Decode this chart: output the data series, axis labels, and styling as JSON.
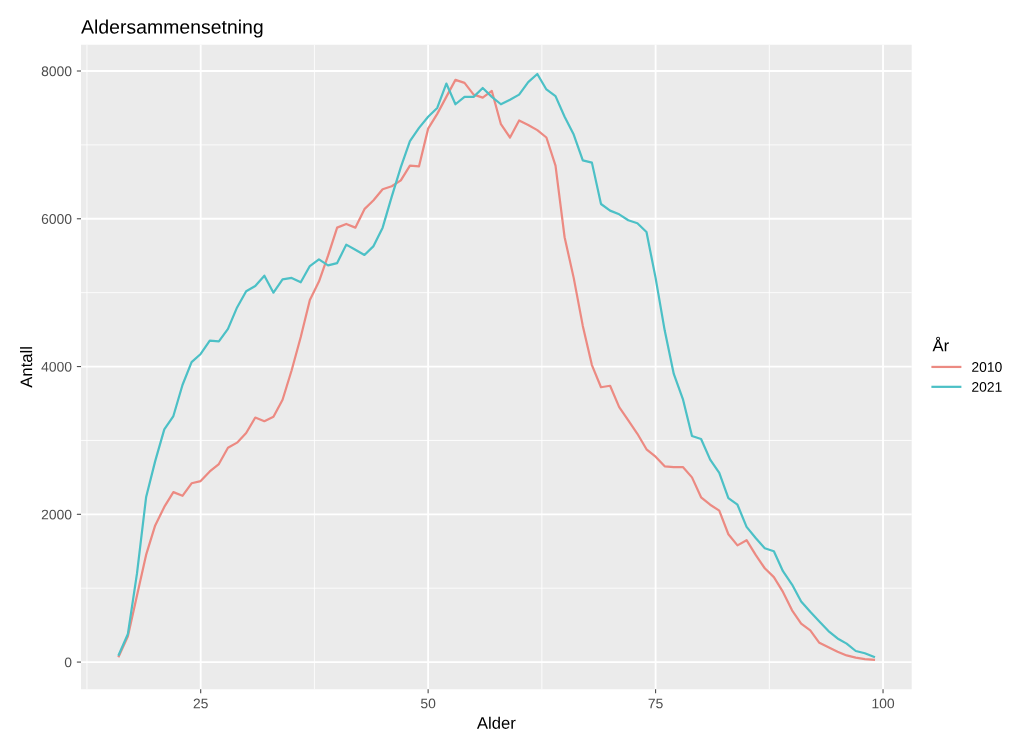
{
  "chart_data": {
    "type": "line",
    "title": "Aldersammensetning",
    "xlabel": "Alder",
    "ylabel": "Antall",
    "legend_title": "År",
    "x": [
      16,
      17,
      18,
      19,
      20,
      21,
      22,
      23,
      24,
      25,
      26,
      27,
      28,
      29,
      30,
      31,
      32,
      33,
      34,
      35,
      36,
      37,
      38,
      39,
      40,
      41,
      42,
      43,
      44,
      45,
      46,
      47,
      48,
      49,
      50,
      51,
      52,
      53,
      54,
      55,
      56,
      57,
      58,
      59,
      60,
      61,
      62,
      63,
      64,
      65,
      66,
      67,
      68,
      69,
      70,
      71,
      72,
      73,
      74,
      75,
      76,
      77,
      78,
      79,
      80,
      81,
      82,
      83,
      84,
      85,
      86,
      87,
      88,
      89,
      90,
      91,
      92,
      93,
      94,
      95,
      96,
      97,
      98,
      99
    ],
    "series": [
      {
        "name": "2010",
        "color": "#ec8a82",
        "values": [
          80,
          350,
          900,
          1450,
          1850,
          2100,
          2300,
          2250,
          2420,
          2450,
          2580,
          2680,
          2900,
          2970,
          3100,
          3310,
          3260,
          3320,
          3550,
          3950,
          4400,
          4900,
          5150,
          5500,
          5880,
          5930,
          5880,
          6130,
          6250,
          6400,
          6440,
          6520,
          6720,
          6710,
          7220,
          7420,
          7650,
          7880,
          7840,
          7680,
          7640,
          7730,
          7280,
          7100,
          7330,
          7270,
          7200,
          7100,
          6720,
          5750,
          5200,
          4550,
          4020,
          3720,
          3740,
          3450,
          3270,
          3090,
          2880,
          2780,
          2650,
          2640,
          2640,
          2500,
          2230,
          2130,
          2050,
          1730,
          1580,
          1650,
          1450,
          1270,
          1150,
          950,
          700,
          520,
          430,
          260,
          200,
          140,
          90,
          60,
          40,
          30
        ]
      },
      {
        "name": "2021",
        "color": "#4cc0c6",
        "values": [
          100,
          380,
          1200,
          2230,
          2720,
          3150,
          3330,
          3750,
          4060,
          4170,
          4350,
          4340,
          4510,
          4800,
          5020,
          5090,
          5230,
          5000,
          5180,
          5200,
          5140,
          5360,
          5450,
          5370,
          5400,
          5650,
          5580,
          5510,
          5630,
          5880,
          6300,
          6700,
          7050,
          7230,
          7380,
          7500,
          7830,
          7550,
          7650,
          7650,
          7770,
          7650,
          7550,
          7610,
          7680,
          7850,
          7960,
          7750,
          7660,
          7380,
          7140,
          6790,
          6760,
          6200,
          6110,
          6060,
          5980,
          5940,
          5820,
          5200,
          4490,
          3900,
          3560,
          3060,
          3020,
          2740,
          2560,
          2220,
          2130,
          1830,
          1680,
          1540,
          1500,
          1230,
          1050,
          820,
          680,
          550,
          420,
          320,
          250,
          150,
          120,
          70
        ]
      }
    ],
    "xlim": [
      11.85,
      103.15
    ],
    "ylim": [
      -366,
      8356
    ],
    "xticks": [
      25,
      50,
      75,
      100
    ],
    "yticks": [
      0,
      2000,
      4000,
      6000,
      8000
    ],
    "grid": true,
    "legend": "right",
    "marker": "none",
    "line_style": "solid"
  }
}
